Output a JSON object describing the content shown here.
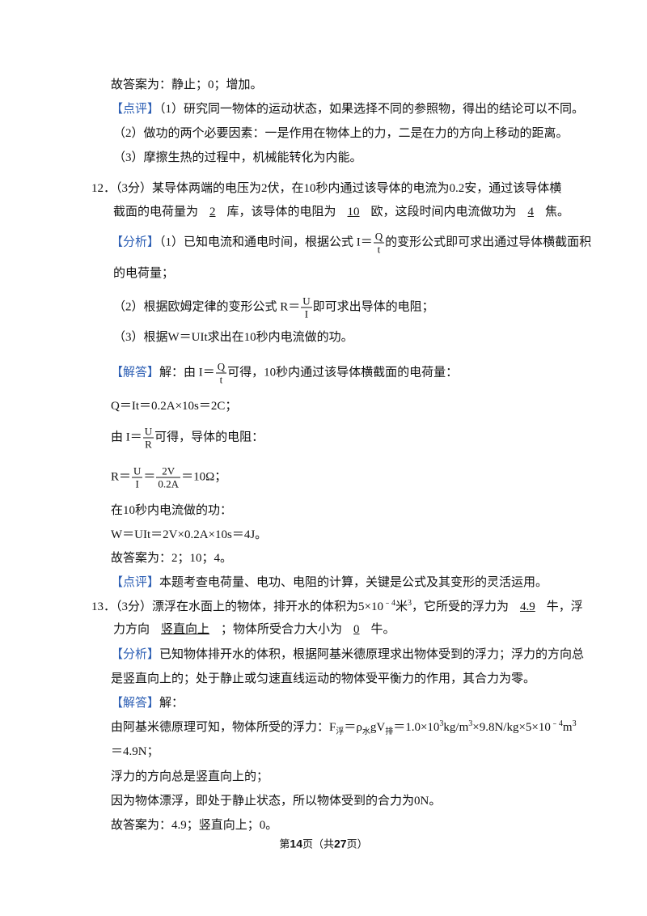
{
  "q11_tail": {
    "answer": "故答案为：静止；0；增加。",
    "review": {
      "label": "【点评】",
      "lines": [
        "（1）研究同一物体的运动状态，如果选择不同的参照物，得出的结论可以不同。",
        "（2）做功的两个必要因素：一是作用在物体上的力，二是在力的方向上移动的距离。",
        "（3）摩擦生热的过程中，机械能转化为内能。"
      ]
    }
  },
  "q12": {
    "stem": [
      [
        "12．（3分）某导体两端的电压为2伏，在10秒内通过该导体的电流为0.2安，通过该导体横"
      ],
      [
        "截面的电荷量为",
        "2",
        "库，该导体的电阻为",
        "10",
        "欧，这段时间内电流做功为",
        "4",
        "焦。"
      ]
    ],
    "analysis": {
      "label": "【分析】",
      "lines": [
        [
          "（1）已知电流和通电时间，根据公式 I＝",
          "Q",
          "t",
          "的变形公式即可求出通过导体横截面积"
        ],
        [
          "的电荷量；"
        ],
        [
          "（2）根据欧姆定律的变形公式 R＝",
          "U",
          "I",
          "即可求出导体的电阻；"
        ],
        [
          "（3）根据W＝UIt求出在10秒内电流做的功。"
        ]
      ]
    },
    "solution": {
      "label": "【解答】",
      "lines": [
        [
          "解：由 I＝",
          "Q",
          "t",
          "可得，10秒内通过该导体横截面的电荷量："
        ],
        [
          "Q＝It＝0.2A×10s＝2C；"
        ],
        [
          "由 I＝",
          "U",
          "R",
          "可得，导体的电阻："
        ],
        [
          "R＝",
          "U",
          "I",
          "＝",
          "2V",
          "0.2A",
          "＝10Ω；"
        ],
        [
          "在10秒内电流做的功："
        ],
        [
          "W＝UIt＝2V×0.2A×10s＝4J。"
        ],
        [
          "故答案为：2；10；4。"
        ]
      ]
    },
    "review": {
      "label": "【点评】",
      "text": "本题考查电荷量、电功、电阻的计算，关键是公式及其变形的灵活运用。"
    }
  },
  "q13": {
    "stem": [
      [
        "13．（3分）漂浮在水面上的物体，排开水的体积为5×10",
        "﹣4",
        "米",
        "3",
        "，它所受的浮力为",
        "4.9",
        "牛，浮"
      ],
      [
        "力方向",
        "竖直向上",
        "；物体所受合力大小为",
        "0",
        "牛。"
      ]
    ],
    "analysis": {
      "label": "【分析】",
      "lines": [
        [
          "已知物体排开水的体积，根据阿基米德原理求出物体受到的浮力；浮力的方向总"
        ],
        [
          "是竖直向上的；处于静止或匀速直线运动的物体受平衡力的作用，其合力为零。"
        ]
      ]
    },
    "solution": {
      "label": "【解答】",
      "lines": [
        [
          "解："
        ],
        [
          "由阿基米德原理可知，物体所受的浮力：F",
          "浮",
          "＝ρ",
          "水",
          "gV",
          "排",
          "＝1.0×10",
          "3",
          "kg/m",
          "3",
          "×9.8N/kg×5×10",
          "﹣4",
          "m",
          "3"
        ],
        [
          "＝4.9N；"
        ],
        [
          "浮力的方向总是竖直向上的；"
        ],
        [
          "因为物体漂浮，即处于静止状态，所以物体受到的合力为0N。"
        ],
        [
          "故答案为：4.9；竖直向上；0。"
        ]
      ]
    }
  },
  "footer": [
    "第",
    "14",
    "页（共",
    "27",
    "页）"
  ]
}
